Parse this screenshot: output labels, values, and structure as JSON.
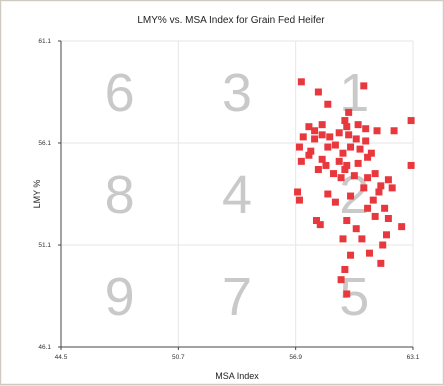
{
  "chart_data": {
    "type": "scatter",
    "title": "LMY% vs. MSA Index for Grain Fed Heifer",
    "xlabel": "MSA Index",
    "ylabel": "LMY %",
    "xlim": [
      44.5,
      63.1
    ],
    "ylim": [
      46.1,
      61.1
    ],
    "x_ticks": [
      "44.5",
      "50.7",
      "56.9",
      "63.1"
    ],
    "y_ticks": [
      "61.1",
      "56.1",
      "51.1",
      "46.1"
    ],
    "grid": true,
    "zone_labels": [
      "6",
      "3",
      "1",
      "8",
      "4",
      "2",
      "9",
      "7",
      "5"
    ],
    "marker_color": "#e8383d",
    "series": [
      {
        "points": [
          [
            57.2,
            59.1
          ],
          [
            58.1,
            58.6
          ],
          [
            58.6,
            58.0
          ],
          [
            60.5,
            58.9
          ],
          [
            59.7,
            57.6
          ],
          [
            59.5,
            57.2
          ],
          [
            57.6,
            56.9
          ],
          [
            58.3,
            57.0
          ],
          [
            57.9,
            56.7
          ],
          [
            59.6,
            56.9
          ],
          [
            60.2,
            57.0
          ],
          [
            60.6,
            56.8
          ],
          [
            61.2,
            56.7
          ],
          [
            62.1,
            56.7
          ],
          [
            63.0,
            57.2
          ],
          [
            57.3,
            56.4
          ],
          [
            57.9,
            56.3
          ],
          [
            58.3,
            56.5
          ],
          [
            58.7,
            56.4
          ],
          [
            59.2,
            56.6
          ],
          [
            59.7,
            56.5
          ],
          [
            60.1,
            56.3
          ],
          [
            60.6,
            56.2
          ],
          [
            57.1,
            55.9
          ],
          [
            57.7,
            55.7
          ],
          [
            58.6,
            55.9
          ],
          [
            59.0,
            56.0
          ],
          [
            59.4,
            55.6
          ],
          [
            59.8,
            55.9
          ],
          [
            60.3,
            55.8
          ],
          [
            60.9,
            55.6
          ],
          [
            57.2,
            55.2
          ],
          [
            57.6,
            55.5
          ],
          [
            58.3,
            55.3
          ],
          [
            58.5,
            55.0
          ],
          [
            59.2,
            55.2
          ],
          [
            59.6,
            55.0
          ],
          [
            60.2,
            55.1
          ],
          [
            60.7,
            55.4
          ],
          [
            58.1,
            54.8
          ],
          [
            58.9,
            54.6
          ],
          [
            59.5,
            54.8
          ],
          [
            60.0,
            54.5
          ],
          [
            59.3,
            54.4
          ],
          [
            60.7,
            54.4
          ],
          [
            61.1,
            54.6
          ],
          [
            61.4,
            54.0
          ],
          [
            61.8,
            54.3
          ],
          [
            62.0,
            53.9
          ],
          [
            63.0,
            55.0
          ],
          [
            57.0,
            53.7
          ],
          [
            57.1,
            53.3
          ],
          [
            58.6,
            53.6
          ],
          [
            59.0,
            53.2
          ],
          [
            59.8,
            53.5
          ],
          [
            60.5,
            53.9
          ],
          [
            61.0,
            53.3
          ],
          [
            61.3,
            53.7
          ],
          [
            60.7,
            52.9
          ],
          [
            61.6,
            52.9
          ],
          [
            58.2,
            52.1
          ],
          [
            58.0,
            52.3
          ],
          [
            59.6,
            52.3
          ],
          [
            61.1,
            52.5
          ],
          [
            61.8,
            52.4
          ],
          [
            62.5,
            52.0
          ],
          [
            60.1,
            51.9
          ],
          [
            61.7,
            51.6
          ],
          [
            59.4,
            51.4
          ],
          [
            60.4,
            51.4
          ],
          [
            61.5,
            51.1
          ],
          [
            60.8,
            50.7
          ],
          [
            59.8,
            50.6
          ],
          [
            61.4,
            50.2
          ],
          [
            59.5,
            49.9
          ],
          [
            59.3,
            49.4
          ],
          [
            59.6,
            48.7
          ]
        ]
      }
    ]
  }
}
